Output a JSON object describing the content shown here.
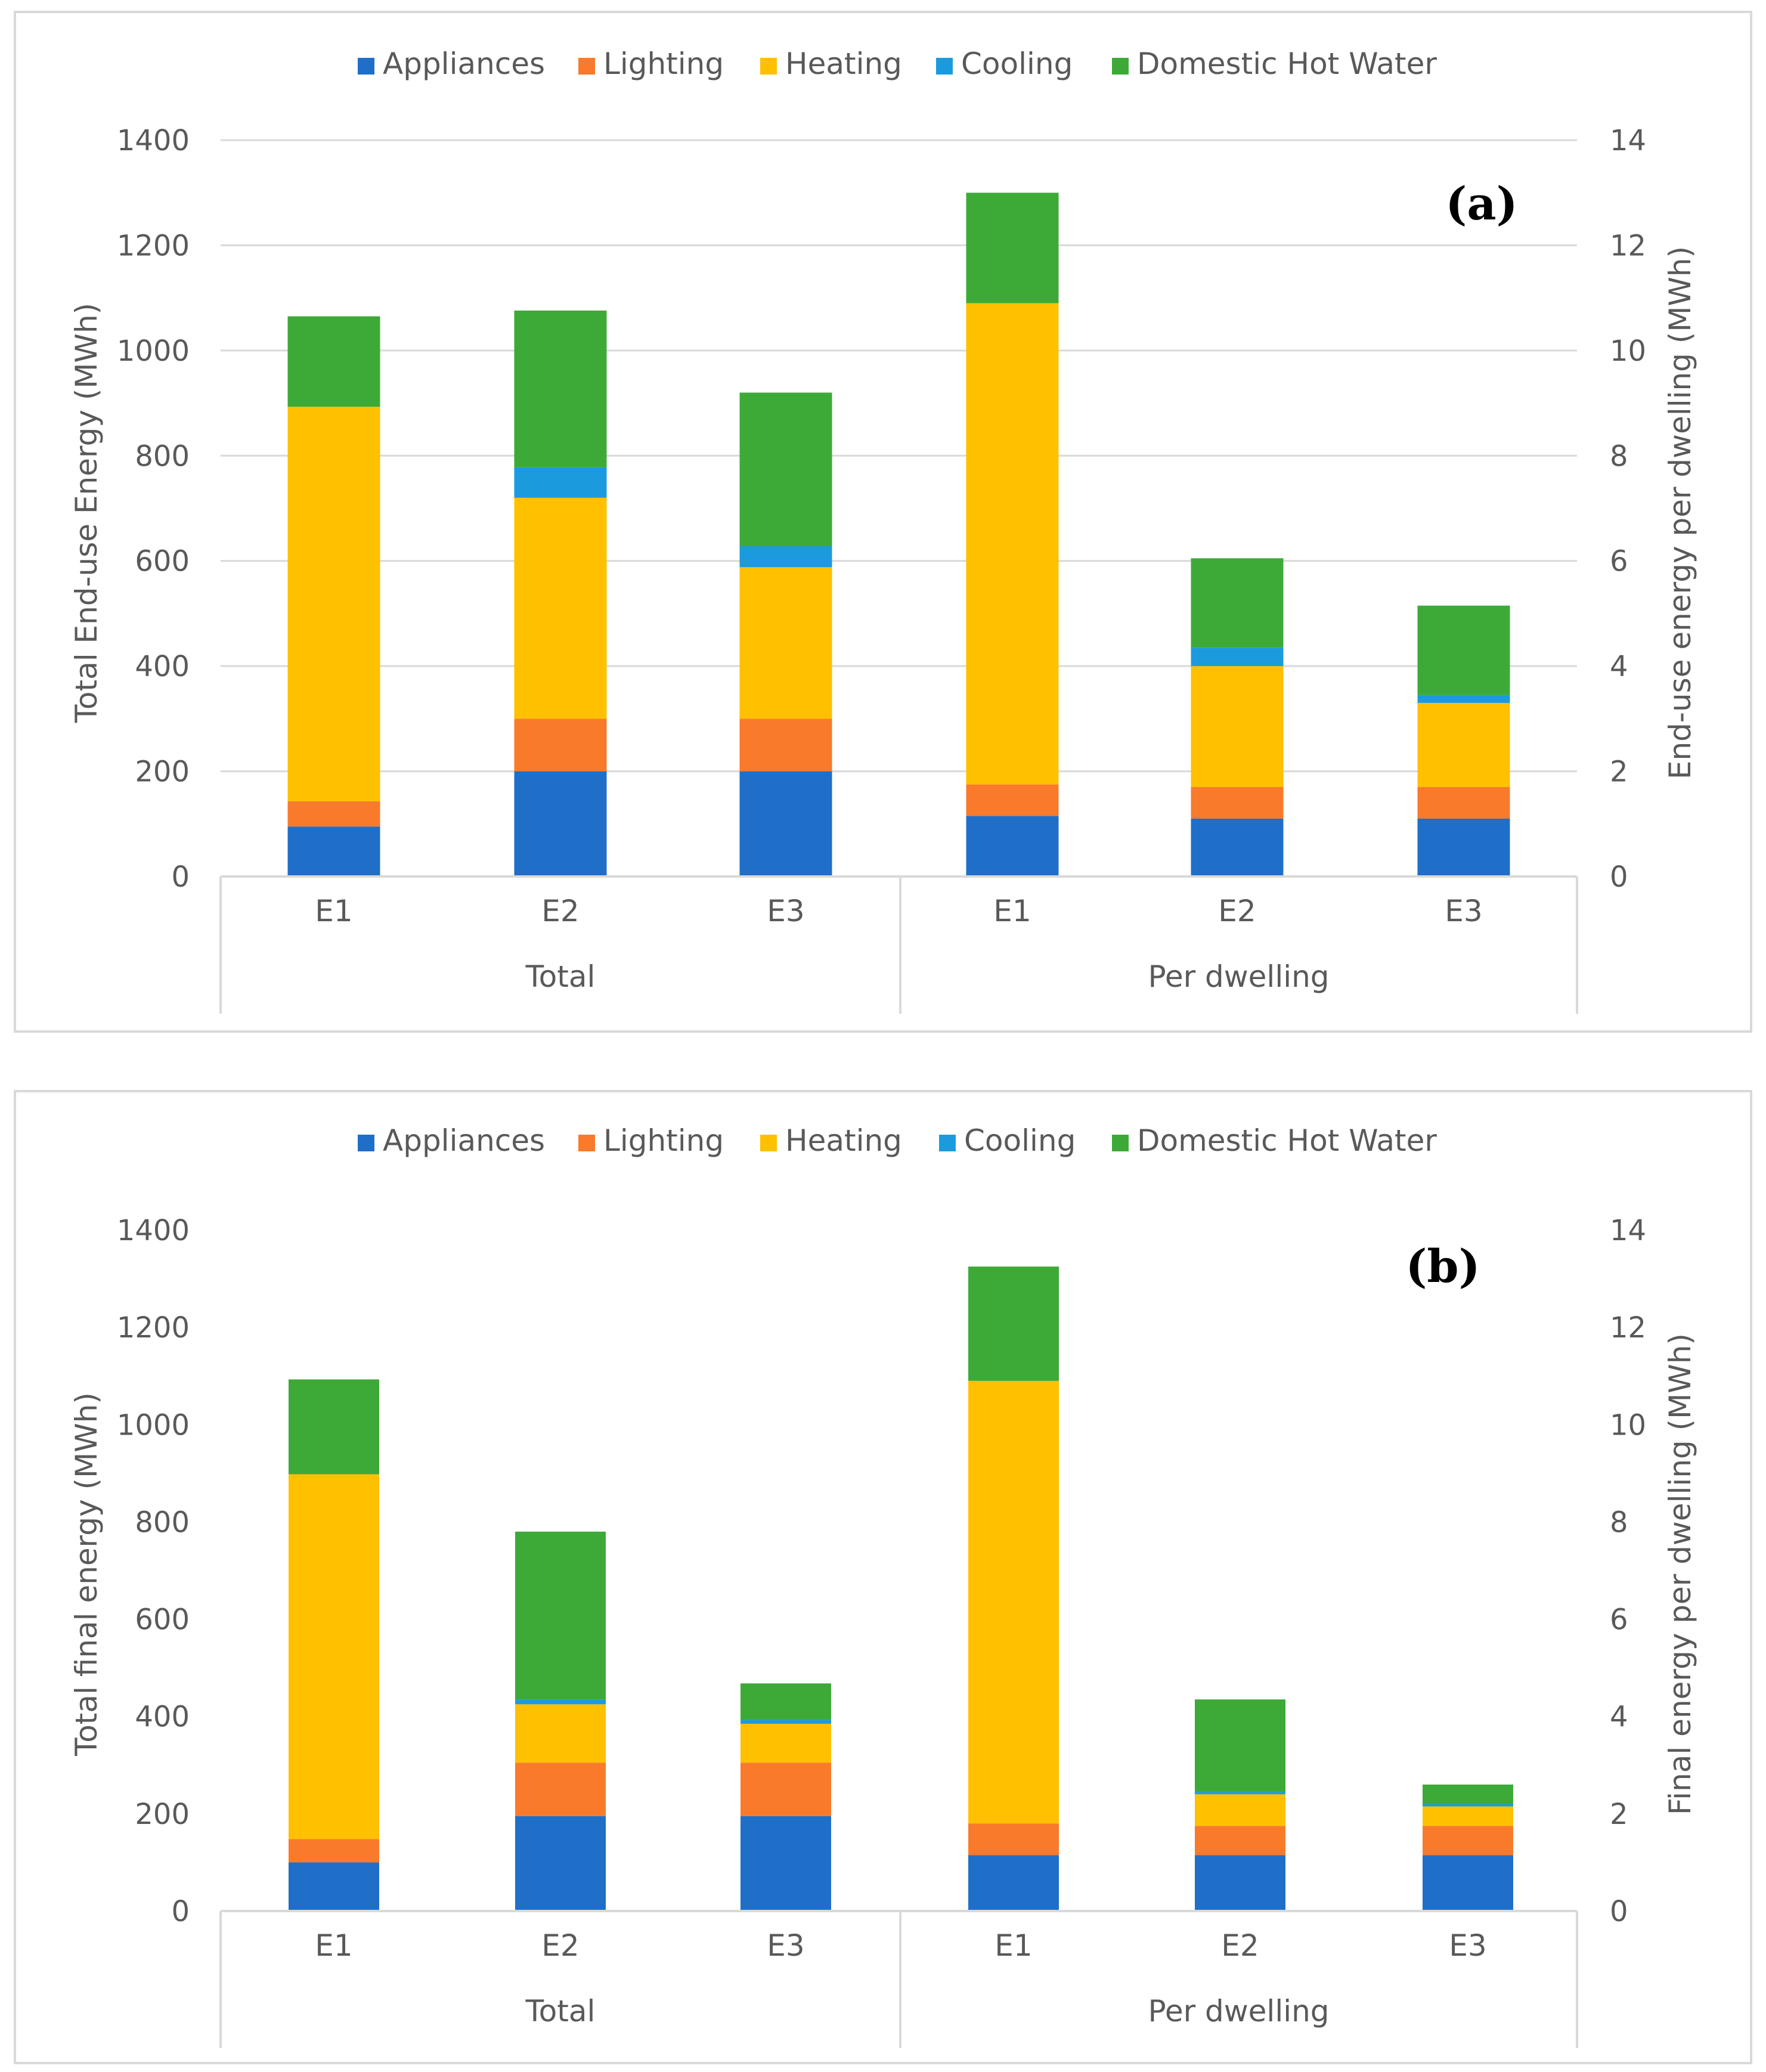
{
  "legend": [
    {
      "name": "Appliances",
      "color": "#1F6FC8"
    },
    {
      "name": "Lighting",
      "color": "#F97A2A"
    },
    {
      "name": "Heating",
      "color": "#FFC000"
    },
    {
      "name": "Cooling",
      "color": "#1B9BDD"
    },
    {
      "name": "Domestic Hot Water",
      "color": "#3DAA38"
    }
  ],
  "chart_data": [
    {
      "type": "bar",
      "stacked": true,
      "panel_label": "(a)",
      "group_labels": [
        "Total",
        "Per dwelling"
      ],
      "categories": [
        "E1",
        "E2",
        "E3",
        "E1",
        "E2",
        "E3"
      ],
      "ylabel": "Total End-use Energy (MWh)",
      "y2label": "End-use energy  per dwelling (MWh)",
      "ylim": [
        0,
        1400
      ],
      "y2lim": [
        0,
        14
      ],
      "yticks": [
        "0",
        "200",
        "400",
        "600",
        "800",
        "1000",
        "1200",
        "1400"
      ],
      "y2ticks": [
        "0",
        "2",
        "4",
        "6",
        "8",
        "10",
        "12",
        "14"
      ],
      "grid": true,
      "legend_position": "top",
      "series": [
        {
          "name": "Appliances",
          "values": [
            95,
            200,
            200,
            1.15,
            1.1,
            1.1
          ]
        },
        {
          "name": "Lighting",
          "values": [
            48,
            100,
            100,
            0.6,
            0.6,
            0.6
          ]
        },
        {
          "name": "Heating",
          "values": [
            750,
            420,
            288,
            9.15,
            2.3,
            1.6
          ]
        },
        {
          "name": "Cooling",
          "values": [
            0,
            58,
            40,
            0,
            0.35,
            0.15
          ]
        },
        {
          "name": "Domestic Hot Water",
          "values": [
            172,
            298,
            292,
            2.1,
            1.7,
            1.7
          ]
        }
      ]
    },
    {
      "type": "bar",
      "stacked": true,
      "panel_label": "(b)",
      "group_labels": [
        "Total",
        "Per dwelling"
      ],
      "categories": [
        "E1",
        "E2",
        "E3",
        "E1",
        "E2",
        "E3"
      ],
      "ylabel": "Total final energy (MWh)",
      "y2label": "Final energy per dwelling (MWh)",
      "ylim": [
        0,
        1400
      ],
      "y2lim": [
        0,
        14
      ],
      "yticks": [
        "0",
        "200",
        "400",
        "600",
        "800",
        "1000",
        "1200",
        "1400"
      ],
      "y2ticks": [
        "0",
        "2",
        "4",
        "6",
        "8",
        "10",
        "12",
        "14"
      ],
      "grid": false,
      "legend_position": "top",
      "series": [
        {
          "name": "Appliances",
          "values": [
            100,
            195,
            195,
            1.15,
            1.15,
            1.15
          ]
        },
        {
          "name": "Lighting",
          "values": [
            48,
            110,
            110,
            0.65,
            0.6,
            0.6
          ]
        },
        {
          "name": "Heating",
          "values": [
            750,
            120,
            80,
            9.1,
            0.65,
            0.4
          ]
        },
        {
          "name": "Cooling",
          "values": [
            0,
            10,
            8,
            0,
            0.05,
            0.05
          ]
        },
        {
          "name": "Domestic Hot Water",
          "values": [
            195,
            345,
            75,
            2.35,
            1.9,
            0.4
          ]
        }
      ]
    }
  ]
}
